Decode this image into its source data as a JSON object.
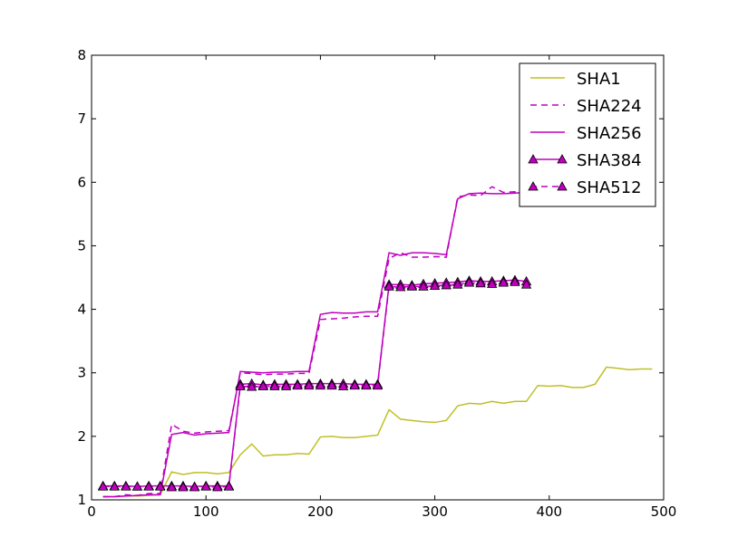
{
  "chart_data": {
    "type": "line",
    "title": "",
    "xlabel": "",
    "ylabel": "",
    "xlim": [
      0,
      500
    ],
    "ylim": [
      1,
      8
    ],
    "x_ticks": [
      "0",
      "100",
      "200",
      "300",
      "400",
      "500"
    ],
    "y_ticks": [
      "1",
      "2",
      "3",
      "4",
      "5",
      "6",
      "7",
      "8"
    ],
    "grid": false,
    "legend_position": "top-right",
    "series": [
      {
        "name": "SHA1",
        "color": "#bfbf26",
        "style": "solid",
        "marker": "none",
        "x": [
          10,
          20,
          30,
          40,
          50,
          60,
          70,
          80,
          90,
          100,
          110,
          120,
          130,
          140,
          150,
          160,
          170,
          180,
          190,
          200,
          210,
          220,
          230,
          240,
          250,
          260,
          270,
          280,
          290,
          300,
          310,
          320,
          330,
          340,
          350,
          360,
          370,
          380,
          390,
          400,
          410,
          420,
          430,
          440,
          450,
          460,
          470,
          480,
          490
        ],
        "values": [
          1.05,
          1.05,
          1.06,
          1.06,
          1.07,
          1.08,
          1.44,
          1.4,
          1.43,
          1.43,
          1.41,
          1.43,
          1.71,
          1.88,
          1.69,
          1.71,
          1.71,
          1.73,
          1.72,
          1.99,
          2.0,
          1.98,
          1.98,
          2.0,
          2.02,
          2.42,
          2.27,
          2.25,
          2.23,
          2.22,
          2.25,
          2.48,
          2.52,
          2.51,
          2.55,
          2.52,
          2.55,
          2.55,
          2.8,
          2.79,
          2.8,
          2.77,
          2.77,
          2.82,
          3.09,
          3.07,
          3.05,
          3.06,
          3.06
        ]
      },
      {
        "name": "SHA224",
        "color": "#bf00bf",
        "style": "dashed",
        "marker": "none",
        "x": [
          10,
          20,
          30,
          40,
          50,
          60,
          70,
          80,
          90,
          100,
          110,
          120,
          130,
          140,
          150,
          160,
          170,
          180,
          190,
          200,
          210,
          220,
          230,
          240,
          250,
          260,
          270,
          280,
          290,
          300,
          310,
          320,
          330,
          340,
          350,
          360,
          370,
          380,
          390
        ],
        "values": [
          1.05,
          1.05,
          1.08,
          1.07,
          1.1,
          1.1,
          2.19,
          2.08,
          2.05,
          2.07,
          2.08,
          2.09,
          3.0,
          2.99,
          2.97,
          2.98,
          2.98,
          2.99,
          2.99,
          3.84,
          3.85,
          3.86,
          3.88,
          3.89,
          3.89,
          4.8,
          4.89,
          4.82,
          4.82,
          4.83,
          4.82,
          5.77,
          5.8,
          5.79,
          5.93,
          5.84,
          5.85,
          5.86,
          6.0
        ]
      },
      {
        "name": "SHA256",
        "color": "#bf00bf",
        "style": "solid",
        "marker": "none",
        "x": [
          10,
          20,
          30,
          40,
          50,
          60,
          70,
          80,
          90,
          100,
          110,
          120,
          130,
          140,
          150,
          160,
          170,
          180,
          190,
          200,
          210,
          220,
          230,
          240,
          250,
          260,
          270,
          280,
          290,
          300,
          310,
          320,
          330,
          340,
          350,
          360,
          370,
          380,
          390
        ],
        "values": [
          1.05,
          1.05,
          1.06,
          1.07,
          1.08,
          1.08,
          2.03,
          2.06,
          2.02,
          2.04,
          2.05,
          2.06,
          3.02,
          3.01,
          3.0,
          3.01,
          3.01,
          3.02,
          3.02,
          3.92,
          3.95,
          3.94,
          3.94,
          3.96,
          3.96,
          4.89,
          4.85,
          4.89,
          4.89,
          4.88,
          4.86,
          5.74,
          5.82,
          5.83,
          5.82,
          5.82,
          5.83,
          5.84,
          6.05
        ]
      },
      {
        "name": "SHA384",
        "color": "#bf00bf",
        "style": "solid",
        "marker": "triangle",
        "x": [
          10,
          20,
          30,
          40,
          50,
          60,
          70,
          80,
          90,
          100,
          110,
          120,
          130,
          140,
          150,
          160,
          170,
          180,
          190,
          200,
          210,
          220,
          230,
          240,
          250,
          260,
          270,
          280,
          290,
          300,
          310,
          320,
          330,
          340,
          350,
          360,
          370,
          380
        ],
        "values": [
          1.22,
          1.22,
          1.22,
          1.21,
          1.22,
          1.22,
          1.22,
          1.22,
          1.21,
          1.22,
          1.22,
          1.22,
          2.82,
          2.83,
          2.81,
          2.82,
          2.82,
          2.82,
          2.83,
          2.83,
          2.83,
          2.83,
          2.82,
          2.82,
          2.82,
          4.39,
          4.39,
          4.38,
          4.4,
          4.41,
          4.42,
          4.43,
          4.45,
          4.44,
          4.44,
          4.45,
          4.46,
          4.44
        ]
      },
      {
        "name": "SHA512",
        "color": "#bf00bf",
        "style": "dashed",
        "marker": "triangle",
        "x": [
          10,
          20,
          30,
          40,
          50,
          60,
          70,
          80,
          90,
          100,
          110,
          120,
          130,
          140,
          150,
          160,
          170,
          180,
          190,
          200,
          210,
          220,
          230,
          240,
          250,
          260,
          270,
          280,
          290,
          300,
          310,
          320,
          330,
          340,
          350,
          360,
          370,
          380
        ],
        "values": [
          1.21,
          1.21,
          1.21,
          1.21,
          1.21,
          1.21,
          1.2,
          1.2,
          1.2,
          1.21,
          1.2,
          1.21,
          2.79,
          2.78,
          2.79,
          2.79,
          2.79,
          2.8,
          2.8,
          2.8,
          2.8,
          2.79,
          2.8,
          2.8,
          2.8,
          4.36,
          4.35,
          4.36,
          4.36,
          4.37,
          4.38,
          4.39,
          4.42,
          4.41,
          4.4,
          4.42,
          4.43,
          4.39
        ]
      }
    ]
  }
}
